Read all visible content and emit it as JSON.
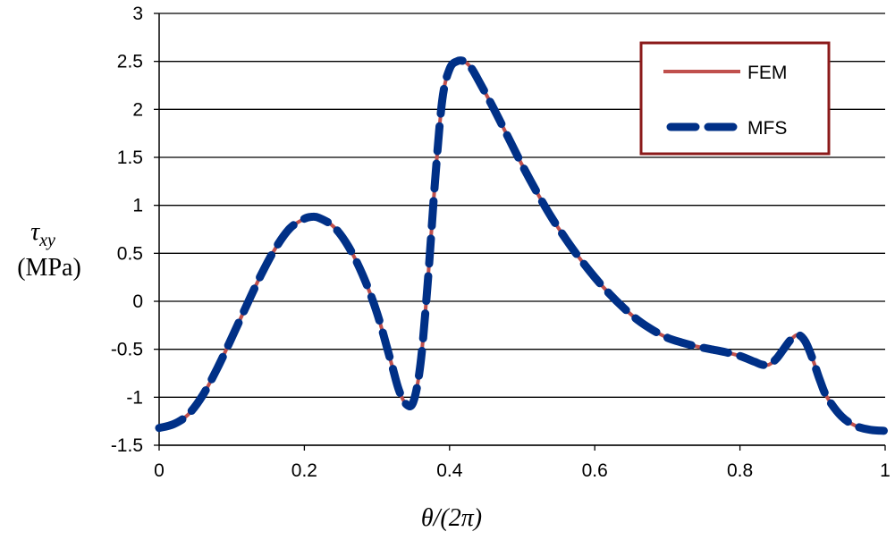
{
  "chart_data": {
    "type": "line",
    "xlabel": "θ/(2π)",
    "ylabel_symbol": "τ",
    "ylabel_subscript": "xy",
    "ylabel_unit": "(MPa)",
    "xlim": [
      0,
      1
    ],
    "ylim": [
      -1.5,
      3
    ],
    "xticks": [
      "0",
      "0.2",
      "0.4",
      "0.6",
      "0.8",
      "1"
    ],
    "yticks": [
      "-1.5",
      "-1",
      "-0.5",
      "0",
      "0.5",
      "1",
      "1.5",
      "2",
      "2.5",
      "3"
    ],
    "grid": true,
    "legend_position": "top-right",
    "series": [
      {
        "name": "FEM",
        "color": "#C0504D",
        "style": "solid",
        "x": [
          0,
          0.02,
          0.04,
          0.06,
          0.08,
          0.1,
          0.12,
          0.14,
          0.16,
          0.18,
          0.2,
          0.21,
          0.22,
          0.24,
          0.26,
          0.28,
          0.3,
          0.32,
          0.33,
          0.34,
          0.35,
          0.36,
          0.37,
          0.38,
          0.39,
          0.4,
          0.41,
          0.42,
          0.43,
          0.44,
          0.46,
          0.48,
          0.5,
          0.52,
          0.54,
          0.56,
          0.58,
          0.6,
          0.62,
          0.64,
          0.66,
          0.68,
          0.7,
          0.72,
          0.74,
          0.76,
          0.78,
          0.8,
          0.82,
          0.83,
          0.84,
          0.85,
          0.86,
          0.87,
          0.88,
          0.89,
          0.9,
          0.91,
          0.92,
          0.94,
          0.96,
          0.98,
          1.0
        ],
        "y": [
          -1.32,
          -1.28,
          -1.18,
          -0.98,
          -0.7,
          -0.38,
          -0.05,
          0.27,
          0.55,
          0.76,
          0.86,
          0.88,
          0.87,
          0.78,
          0.58,
          0.28,
          -0.12,
          -0.65,
          -0.92,
          -1.07,
          -1.05,
          -0.65,
          0.2,
          1.25,
          2.1,
          2.42,
          2.5,
          2.5,
          2.43,
          2.3,
          2.02,
          1.72,
          1.42,
          1.14,
          0.88,
          0.65,
          0.44,
          0.25,
          0.08,
          -0.07,
          -0.2,
          -0.3,
          -0.38,
          -0.43,
          -0.47,
          -0.5,
          -0.53,
          -0.57,
          -0.63,
          -0.66,
          -0.66,
          -0.6,
          -0.5,
          -0.4,
          -0.35,
          -0.42,
          -0.6,
          -0.82,
          -1.0,
          -1.2,
          -1.3,
          -1.34,
          -1.35
        ]
      },
      {
        "name": "MFS",
        "color": "#003087",
        "style": "dashed",
        "x": [
          0,
          0.02,
          0.04,
          0.06,
          0.08,
          0.1,
          0.12,
          0.14,
          0.16,
          0.18,
          0.2,
          0.21,
          0.22,
          0.24,
          0.26,
          0.28,
          0.3,
          0.32,
          0.33,
          0.34,
          0.35,
          0.36,
          0.37,
          0.38,
          0.39,
          0.4,
          0.41,
          0.42,
          0.43,
          0.44,
          0.46,
          0.48,
          0.5,
          0.52,
          0.54,
          0.56,
          0.58,
          0.6,
          0.62,
          0.64,
          0.66,
          0.68,
          0.7,
          0.72,
          0.74,
          0.76,
          0.78,
          0.8,
          0.82,
          0.83,
          0.84,
          0.85,
          0.86,
          0.87,
          0.88,
          0.89,
          0.9,
          0.91,
          0.92,
          0.94,
          0.96,
          0.98,
          1.0
        ],
        "y": [
          -1.32,
          -1.28,
          -1.18,
          -0.98,
          -0.7,
          -0.38,
          -0.05,
          0.27,
          0.55,
          0.76,
          0.86,
          0.88,
          0.87,
          0.78,
          0.58,
          0.28,
          -0.12,
          -0.65,
          -0.92,
          -1.07,
          -1.05,
          -0.65,
          0.2,
          1.25,
          2.1,
          2.42,
          2.5,
          2.5,
          2.43,
          2.3,
          2.02,
          1.72,
          1.42,
          1.14,
          0.88,
          0.65,
          0.44,
          0.25,
          0.08,
          -0.07,
          -0.2,
          -0.3,
          -0.38,
          -0.43,
          -0.47,
          -0.5,
          -0.53,
          -0.57,
          -0.63,
          -0.66,
          -0.66,
          -0.6,
          -0.5,
          -0.4,
          -0.35,
          -0.42,
          -0.6,
          -0.82,
          -1.0,
          -1.2,
          -1.3,
          -1.34,
          -1.35
        ]
      }
    ],
    "legend_box_color": "#8B1A1A"
  }
}
